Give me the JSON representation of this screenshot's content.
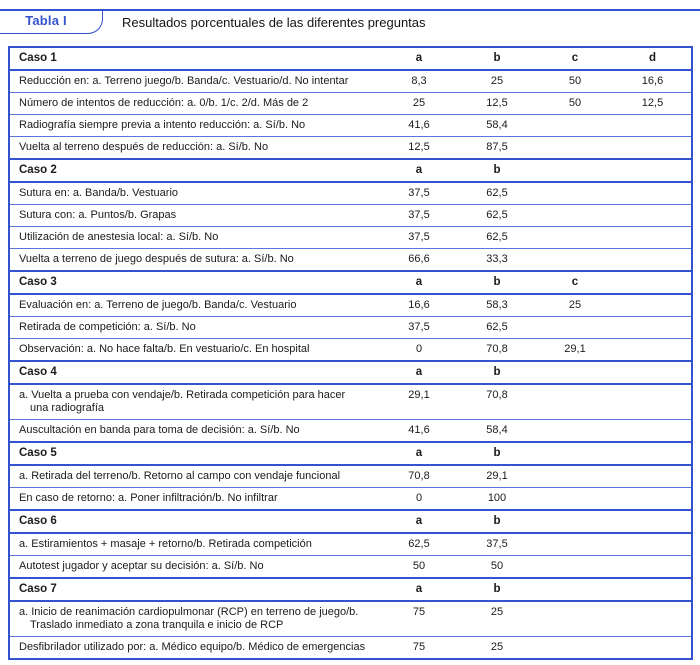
{
  "colors": {
    "accent": "#3353cf",
    "row_border": "#5b76d8",
    "text": "#1b1b1b"
  },
  "caption": {
    "tag": "Tabla I",
    "title": "Resultados porcentuales de las diferentes preguntas"
  },
  "table": {
    "sections": [
      {
        "case": "Caso 1",
        "columns": [
          "a",
          "b",
          "c",
          "d"
        ],
        "rows": [
          {
            "label": "Reducción en: a. Terreno juego/b. Banda/c. Vestuario/d. No intentar",
            "values": [
              "8,3",
              "25",
              "50",
              "16,6"
            ]
          },
          {
            "label": "Número de intentos de reducción: a. 0/b. 1/c. 2/d. Más de 2",
            "values": [
              "25",
              "12,5",
              "50",
              "12,5"
            ]
          },
          {
            "label": "Radiografía siempre previa a intento reducción: a. Sí/b. No",
            "values": [
              "41,6",
              "58,4",
              "",
              ""
            ]
          },
          {
            "label": "Vuelta al terreno después de reducción: a. Sí/b. No",
            "values": [
              "12,5",
              "87,5",
              "",
              ""
            ]
          }
        ]
      },
      {
        "case": "Caso 2",
        "columns": [
          "a",
          "b"
        ],
        "rows": [
          {
            "label": "Sutura en: a. Banda/b. Vestuario",
            "values": [
              "37,5",
              "62,5"
            ]
          },
          {
            "label": "Sutura con: a. Puntos/b. Grapas",
            "values": [
              "37,5",
              "62,5"
            ]
          },
          {
            "label": "Utilización de anestesia local: a. Sí/b. No",
            "values": [
              "37,5",
              "62,5"
            ]
          },
          {
            "label": "Vuelta a terreno de juego después de sutura: a. Sí/b. No",
            "values": [
              "66,6",
              "33,3"
            ]
          }
        ]
      },
      {
        "case": "Caso 3",
        "columns": [
          "a",
          "b",
          "c"
        ],
        "rows": [
          {
            "label": "Evaluación en: a. Terreno de juego/b. Banda/c. Vestuario",
            "values": [
              "16,6",
              "58,3",
              "25"
            ]
          },
          {
            "label": "Retirada de competición: a. Sí/b. No",
            "values": [
              "37,5",
              "62,5",
              ""
            ]
          },
          {
            "label": "Observación: a. No hace falta/b. En vestuario/c. En hospital",
            "values": [
              "0",
              "70,8",
              "29,1"
            ]
          }
        ]
      },
      {
        "case": "Caso 4",
        "columns": [
          "a",
          "b"
        ],
        "rows": [
          {
            "label": "a. Vuelta a prueba con vendaje/b. Retirada competición para hacer",
            "label_line2": "una radiografía",
            "values": [
              "29,1",
              "70,8"
            ]
          },
          {
            "label": "Auscultación en banda para toma de decisión: a. Sí/b. No",
            "values": [
              "41,6",
              "58,4"
            ]
          }
        ]
      },
      {
        "case": "Caso 5",
        "columns": [
          "a",
          "b"
        ],
        "rows": [
          {
            "label": "a. Retirada del terreno/b. Retorno al campo con vendaje funcional",
            "values": [
              "70,8",
              "29,1"
            ]
          },
          {
            "label": "En caso de retorno: a. Poner infiltración/b. No infiltrar",
            "values": [
              "0",
              "100"
            ]
          }
        ]
      },
      {
        "case": "Caso 6",
        "columns": [
          "a",
          "b"
        ],
        "rows": [
          {
            "label": "a. Estiramientos + masaje + retorno/b. Retirada competición",
            "values": [
              "62,5",
              "37,5"
            ]
          },
          {
            "label": "Autotest jugador y aceptar su decisión: a. Sí/b. No",
            "values": [
              "50",
              "50"
            ]
          }
        ]
      },
      {
        "case": "Caso 7",
        "columns": [
          "a",
          "b"
        ],
        "rows": [
          {
            "label": "a. Inicio de reanimación cardiopulmonar (RCP) en terreno de juego/b.",
            "label_line2": "Traslado inmediato a zona tranquila e inicio de RCP",
            "values": [
              "75",
              "25"
            ]
          },
          {
            "label": "Desfibrilador utilizado por: a. Médico equipo/b. Médico de emergencias",
            "values": [
              "75",
              "25"
            ]
          }
        ]
      }
    ]
  }
}
